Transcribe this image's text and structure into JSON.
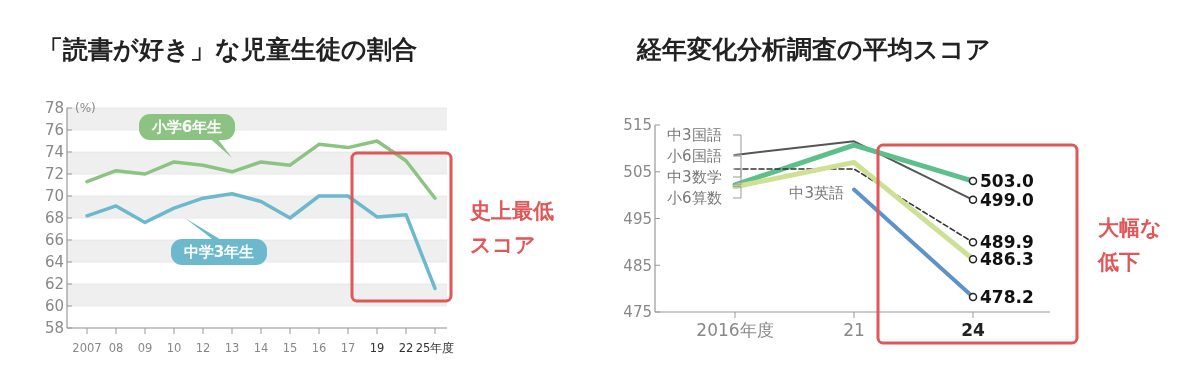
{
  "chart_data": [
    {
      "type": "line",
      "title": "「読書が好き」な児童生徒の割合",
      "ylabel": "(%)",
      "categories": [
        "2007",
        "08",
        "09",
        "10",
        "12",
        "13",
        "14",
        "15",
        "16",
        "17",
        "19",
        "22",
        "25年度"
      ],
      "series": [
        {
          "name": "小学6年生",
          "color": "#8cc383",
          "values": [
            71.3,
            72.3,
            72.0,
            73.1,
            72.8,
            72.2,
            73.1,
            72.8,
            74.7,
            74.4,
            75.0,
            73.2,
            69.8
          ]
        },
        {
          "name": "中学3年生",
          "color": "#6cb8cc",
          "values": [
            68.2,
            69.1,
            67.6,
            68.9,
            69.8,
            70.2,
            69.5,
            68.0,
            70.0,
            70.0,
            68.1,
            68.3,
            61.6
          ]
        }
      ],
      "ylim": [
        58,
        78
      ],
      "yticks": [
        58,
        60,
        62,
        64,
        66,
        68,
        70,
        72,
        74,
        76,
        78
      ],
      "grid": "y",
      "annotations": [
        "史上最低",
        "スコア"
      ]
    },
    {
      "type": "line",
      "title": "経年変化分析調査の平均スコア",
      "categories": [
        "2016年度",
        "21",
        "24"
      ],
      "series": [
        {
          "name": "中3国語",
          "color": "#555555",
          "values": [
            508.6,
            511.5,
            499.0
          ],
          "value_labels": [
            null,
            null,
            "499.0"
          ]
        },
        {
          "name": "小6国語",
          "color": "#5cbf8c",
          "values": [
            502.2,
            510.7,
            503.0
          ],
          "value_labels": [
            null,
            null,
            "503.0"
          ]
        },
        {
          "name": "中3数学",
          "color": "#333333",
          "line_style": "dashed",
          "values": [
            505.6,
            505.6,
            489.9
          ],
          "value_labels": [
            null,
            null,
            "489.9"
          ]
        },
        {
          "name": "小6算数",
          "color": "#cde093",
          "values": [
            501.8,
            507.0,
            486.3
          ],
          "value_labels": [
            null,
            null,
            "486.3"
          ]
        },
        {
          "name": "中3英語",
          "color": "#5e93c9",
          "values": [
            null,
            501.2,
            478.2
          ],
          "value_labels": [
            null,
            null,
            "478.2"
          ]
        }
      ],
      "ylim": [
        475,
        515
      ],
      "yticks": [
        475,
        485,
        495,
        505,
        515
      ],
      "annotations": [
        "大幅な",
        "低下"
      ]
    }
  ]
}
